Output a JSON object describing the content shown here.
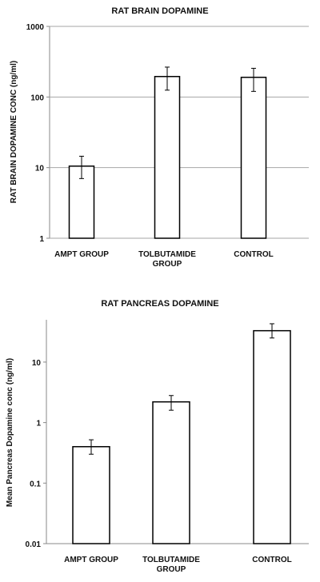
{
  "chart_data": [
    {
      "type": "bar",
      "title": "RAT BRAIN DOPAMINE",
      "ylabel": "RAT BRAIN DOPAMINE CONC (ng/ml)",
      "xlabel": "",
      "yscale": "log",
      "ylim": [
        1,
        1000
      ],
      "ticks": [
        "1",
        "10",
        "100",
        "1000"
      ],
      "grid": true,
      "categories": [
        [
          "AMPT GROUP"
        ],
        [
          "TOLBUTAMIDE",
          "GROUP"
        ],
        [
          "CONTROL"
        ]
      ],
      "values": [
        10.5,
        195,
        190
      ],
      "err_low": [
        7,
        125,
        120
      ],
      "err_high": [
        14.5,
        265,
        255
      ],
      "bar_fill": "#ffffff",
      "bar_stroke": "#000000"
    },
    {
      "type": "bar",
      "title": "RAT PANCREAS DOPAMINE",
      "ylabel": "Mean Pancreas Dopamine conc (ng/ml)",
      "xlabel": "",
      "yscale": "log",
      "ylim": [
        0.01,
        50
      ],
      "ticks": [
        "0.01",
        "0.1",
        "1",
        "10"
      ],
      "grid": false,
      "categories": [
        [
          "AMPT GROUP"
        ],
        [
          "TOLBUTAMIDE",
          "GROUP"
        ],
        [
          "CONTROL"
        ]
      ],
      "values": [
        0.4,
        2.2,
        33
      ],
      "err_low": [
        0.3,
        1.6,
        25
      ],
      "err_high": [
        0.52,
        2.8,
        43
      ],
      "bar_fill": "#ffffff",
      "bar_stroke": "#000000"
    }
  ]
}
